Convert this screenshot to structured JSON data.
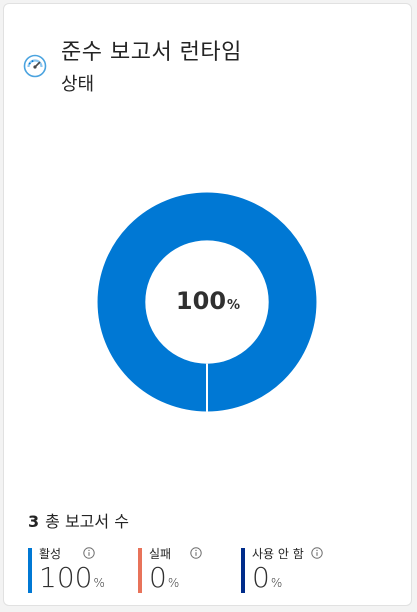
{
  "header": {
    "title": "준수 보고서 런타임",
    "subtitle": "상태",
    "icon": "gauge-icon"
  },
  "chart_data": {
    "type": "pie",
    "variant": "donut",
    "center_value": "100",
    "center_unit": "%",
    "slices": [
      {
        "label": "활성",
        "value": 100,
        "color": "#0078d4"
      },
      {
        "label": "실패",
        "value": 0,
        "color": "#e8735a"
      },
      {
        "label": "사용 안 함",
        "value": 0,
        "color": "#002c8a"
      }
    ]
  },
  "summary": {
    "total_count": "3",
    "total_label": "총 보고서 수"
  },
  "stats": [
    {
      "label": "활성",
      "value": "100",
      "unit": "%",
      "color": "#0078d4",
      "info_icon": "info-icon"
    },
    {
      "label": "실패",
      "value": "0",
      "unit": "%",
      "color": "#e8735a",
      "info_icon": "info-icon"
    },
    {
      "label": "사용 안 함",
      "value": "0",
      "unit": "%",
      "color": "#002c8a",
      "info_icon": "info-icon"
    }
  ]
}
